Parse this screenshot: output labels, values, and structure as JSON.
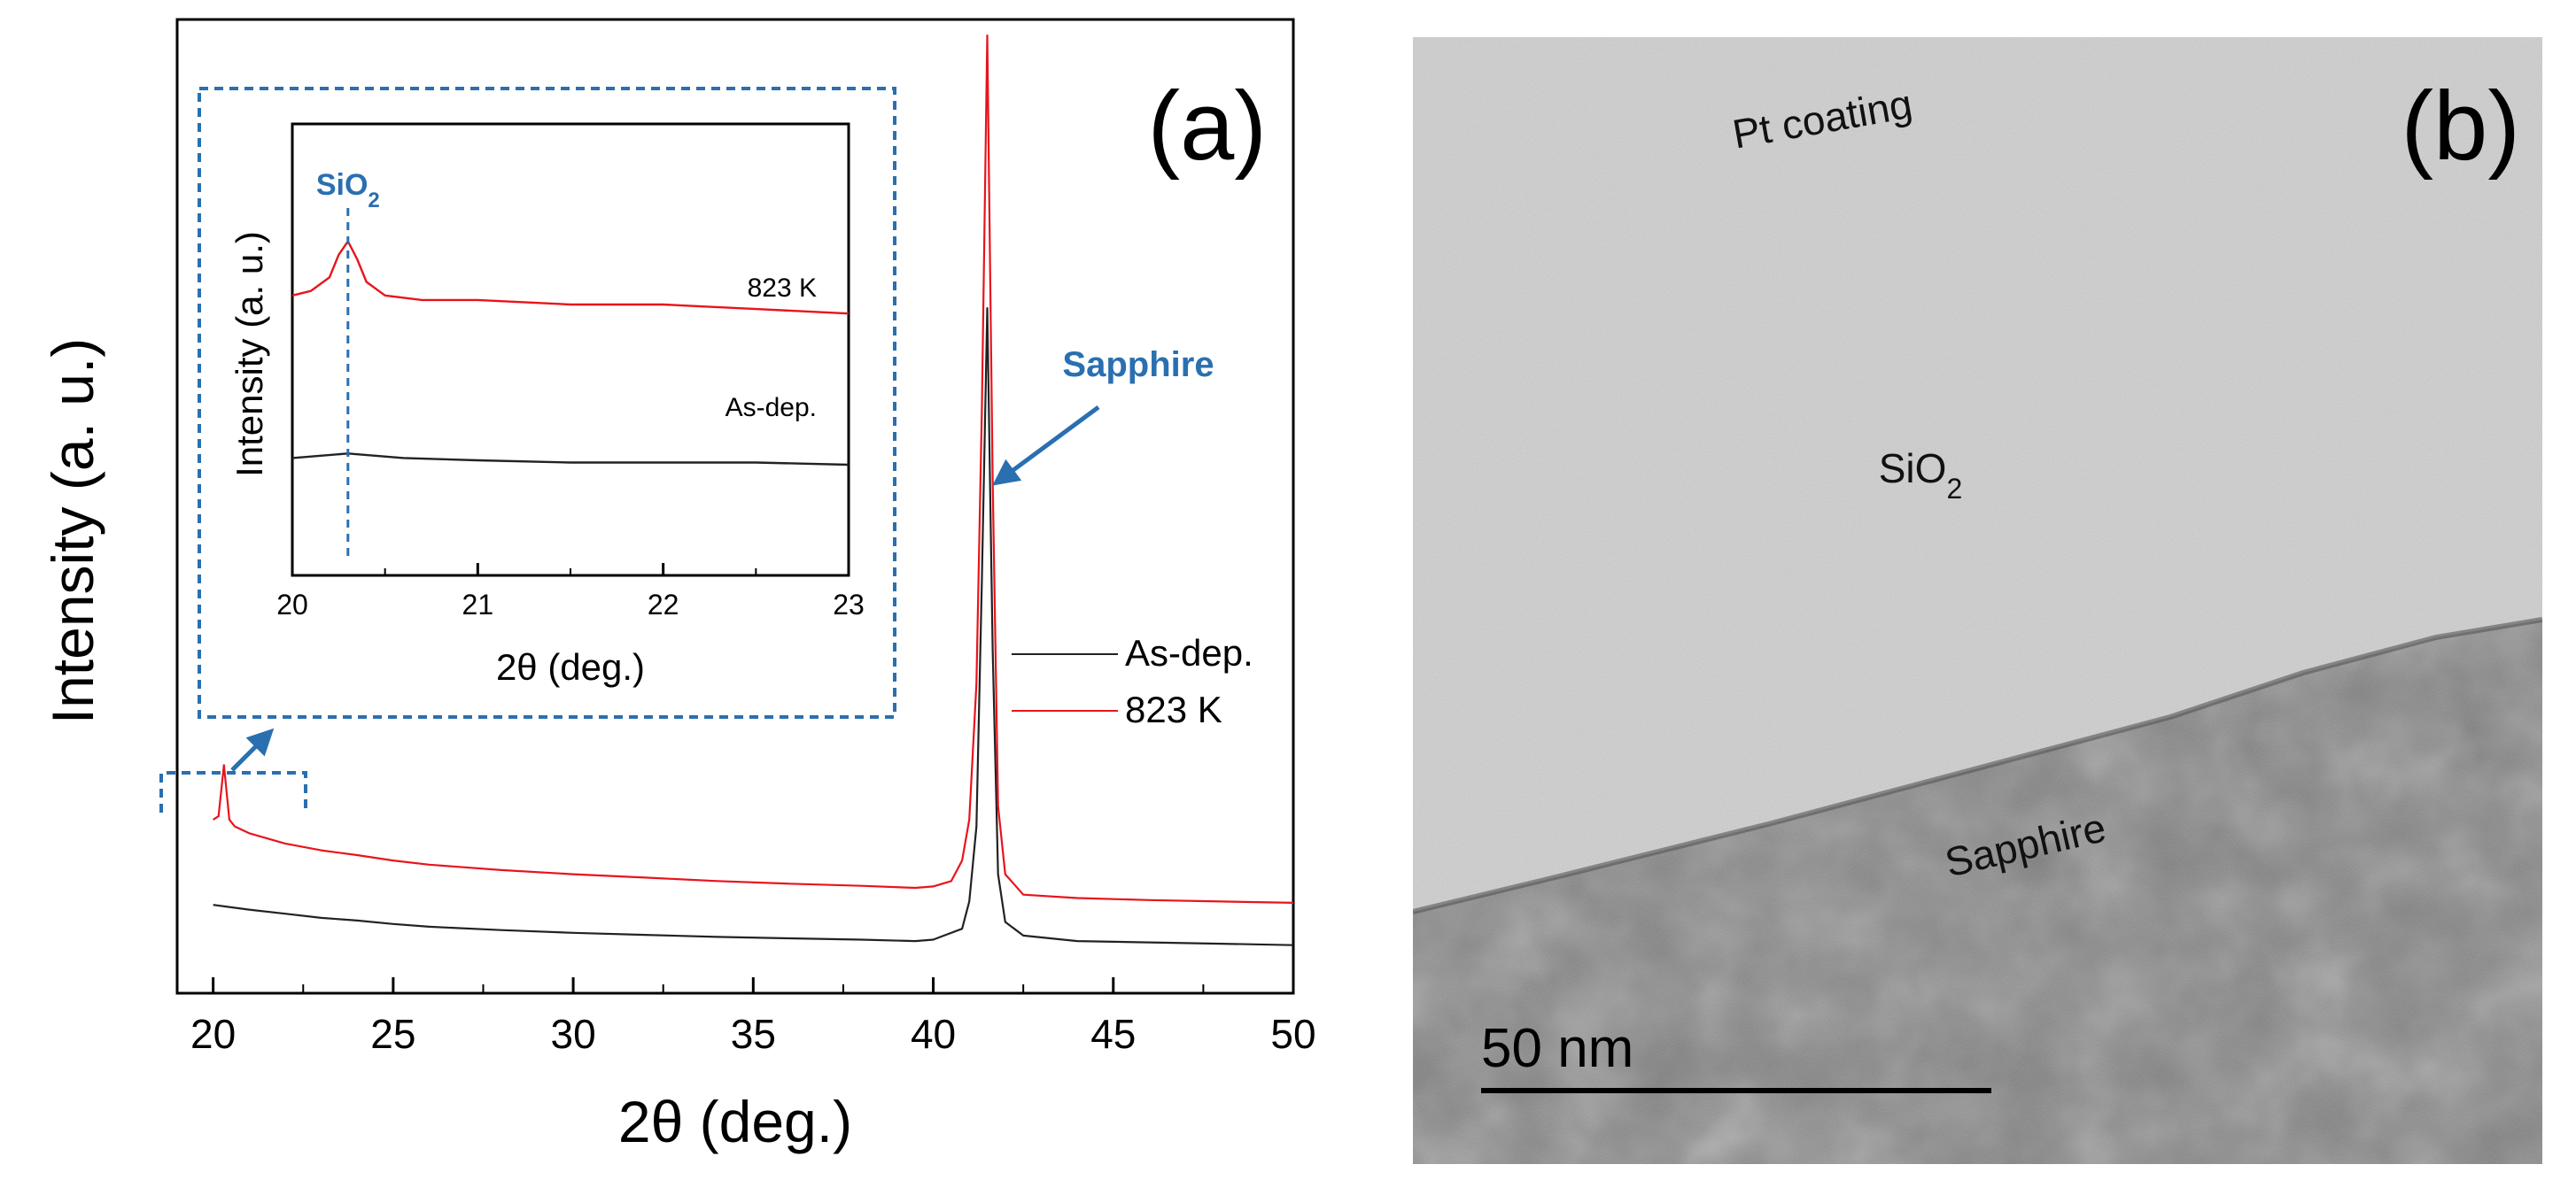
{
  "chart_data": [
    {
      "type": "line",
      "panel_label": "(a)",
      "xlabel": "2θ (deg.)",
      "ylabel": "Intensity (a. u.)",
      "xlim": [
        19,
        50
      ],
      "x_ticks": [
        20,
        25,
        30,
        35,
        40,
        45,
        50
      ],
      "y_ticks": [],
      "legend": {
        "placement": "center-right",
        "entries": [
          {
            "name": "As-dep.",
            "color": "#222222"
          },
          {
            "name": "823 K",
            "color": "#e8141c"
          }
        ]
      },
      "series": [
        {
          "name": "As-dep.",
          "color": "#222222",
          "x": [
            20.0,
            21.0,
            22.0,
            23.0,
            24.0,
            25.0,
            26.0,
            28.0,
            30.0,
            32.0,
            34.0,
            36.0,
            38.0,
            39.5,
            40.0,
            40.2,
            40.8,
            41.0,
            41.2,
            41.35,
            41.5,
            41.65,
            41.8,
            42.0,
            42.5,
            44.0,
            46.0,
            48.0,
            50.0
          ],
          "y": [
            0.075,
            0.068,
            0.062,
            0.056,
            0.052,
            0.047,
            0.043,
            0.038,
            0.034,
            0.031,
            0.028,
            0.026,
            0.024,
            0.022,
            0.024,
            0.028,
            0.04,
            0.08,
            0.19,
            0.55,
            0.95,
            0.45,
            0.12,
            0.05,
            0.03,
            0.022,
            0.02,
            0.018,
            0.016
          ]
        },
        {
          "name": "823 K",
          "color": "#e8141c",
          "x": [
            20.0,
            20.15,
            20.3,
            20.45,
            20.6,
            21.0,
            22.0,
            23.0,
            24.0,
            25.0,
            26.0,
            28.0,
            30.0,
            32.0,
            34.0,
            36.0,
            38.0,
            39.5,
            40.0,
            40.5,
            40.8,
            41.0,
            41.2,
            41.35,
            41.5,
            41.65,
            41.8,
            42.0,
            42.5,
            44.0,
            46.0,
            48.0,
            50.0
          ],
          "y": [
            0.2,
            0.205,
            0.28,
            0.2,
            0.19,
            0.18,
            0.165,
            0.155,
            0.148,
            0.14,
            0.134,
            0.126,
            0.12,
            0.115,
            0.11,
            0.106,
            0.103,
            0.1,
            0.102,
            0.11,
            0.14,
            0.2,
            0.4,
            0.8,
            1.35,
            0.7,
            0.22,
            0.12,
            0.09,
            0.085,
            0.082,
            0.08,
            0.078
          ]
        }
      ],
      "annotations": [
        {
          "text": "Sapphire",
          "x": 41.5
        }
      ],
      "inset": {
        "xlabel": "2θ (deg.)",
        "ylabel": "Intensity (a. u.)",
        "xlim": [
          20,
          23
        ],
        "x_ticks": [
          20,
          21,
          22,
          23
        ],
        "reference_line": {
          "label": "SiO",
          "label_sub": "2",
          "x": 20.3
        },
        "series": [
          {
            "name": "823 K",
            "color": "#e8141c",
            "x": [
              20.0,
              20.1,
              20.2,
              20.25,
              20.3,
              20.35,
              20.4,
              20.5,
              20.7,
              21.0,
              21.5,
              22.0,
              22.5,
              23.0
            ],
            "y": [
              0.62,
              0.63,
              0.66,
              0.71,
              0.74,
              0.7,
              0.65,
              0.62,
              0.61,
              0.61,
              0.6,
              0.6,
              0.59,
              0.58
            ]
          },
          {
            "name": "As-dep.",
            "color": "#222222",
            "x": [
              20.0,
              20.3,
              20.6,
              21.0,
              21.5,
              22.0,
              22.5,
              23.0
            ],
            "y": [
              0.26,
              0.27,
              0.26,
              0.255,
              0.25,
              0.25,
              0.25,
              0.245
            ]
          }
        ],
        "series_labels": [
          "823 K",
          "As-dep."
        ]
      }
    },
    {
      "type": "image",
      "panel_label": "(b)",
      "labels": {
        "top": "Pt coating",
        "middle": "SiO",
        "middle_sub": "2",
        "bottom": "Sapphire"
      },
      "scale_bar": {
        "label": "50 nm"
      }
    }
  ],
  "colors": {
    "as_dep": "#222222",
    "k823": "#e8141c",
    "accent_blue": "#2a6fb0",
    "axis": "#000000",
    "tem_light": "#cfcfcf",
    "tem_dark": "#7a7a7a"
  }
}
